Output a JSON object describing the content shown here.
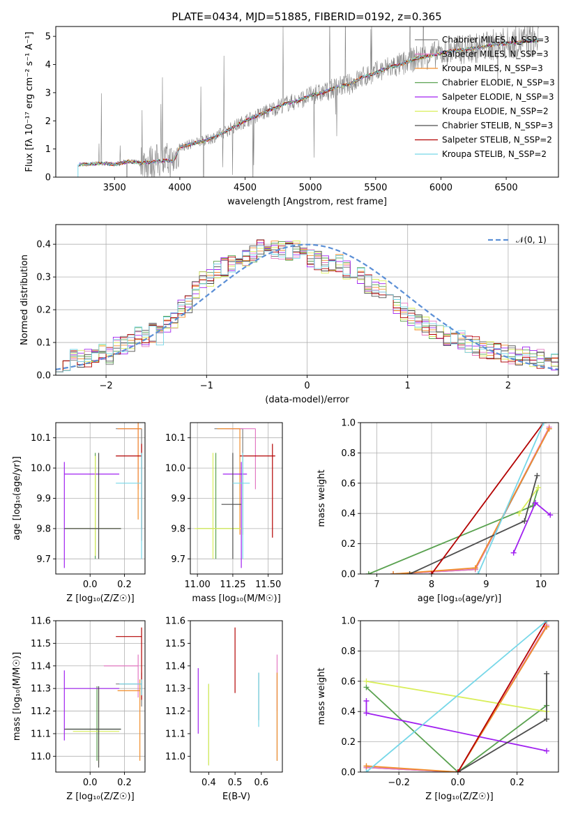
{
  "figure_title": "PLATE=0434, MJD=51885, FIBERID=0192, z=0.365",
  "model_colors": [
    "#7f7f7f",
    "#e377c2",
    "#f28e2b",
    "#59a14f",
    "#a020f0",
    "#d9ee5a",
    "#4d4d4d",
    "#b30000",
    "#76d7e8"
  ],
  "chart_data": [
    {
      "id": "spectrum",
      "type": "line",
      "xlabel": "wavelength [Angstrom, rest frame]",
      "ylabel": "Flux [fλ 10⁻¹⁷ erg cm⁻² s⁻¹ A⁻¹]",
      "xlim": [
        3050,
        6900
      ],
      "ylim": [
        0,
        5.35
      ],
      "xticks": [
        3500,
        4000,
        4500,
        5000,
        5500,
        6000,
        6500
      ],
      "yticks": [
        0,
        1,
        2,
        3,
        4,
        5
      ],
      "continuum": {
        "x": [
          3220,
          3300,
          3400,
          3500,
          3600,
          3700,
          3800,
          3900,
          3950,
          4000,
          4100,
          4200,
          4300,
          4400,
          4500,
          4600,
          4700,
          4800,
          4900,
          5000,
          5100,
          5200,
          5300,
          5400,
          5500,
          5600,
          5700,
          5800,
          5900,
          6000,
          6100,
          6200,
          6300,
          6400,
          6500,
          6600,
          6700,
          6750
        ],
        "y": [
          0.45,
          0.45,
          0.5,
          0.45,
          0.55,
          0.5,
          0.55,
          0.6,
          0.55,
          1.05,
          1.2,
          1.3,
          1.5,
          1.75,
          2.0,
          2.2,
          2.4,
          2.6,
          2.7,
          2.9,
          3.0,
          3.2,
          3.3,
          3.55,
          3.7,
          3.9,
          4.0,
          4.2,
          4.3,
          4.4,
          4.5,
          4.55,
          4.6,
          4.7,
          4.75,
          4.8,
          4.85,
          4.85
        ]
      },
      "legend": [
        "Chabrier MILES, N_SSP=3",
        "Salpeter MILES, N_SSP=3",
        "Kroupa MILES, N_SSP=3",
        "Chabrier ELODIE, N_SSP=3",
        "Salpeter ELODIE, N_SSP=3",
        "Kroupa ELODIE, N_SSP=2",
        "Chabrier STELIB, N_SSP=3",
        "Salpeter STELIB, N_SSP=2",
        "Kroupa STELIB, N_SSP=2"
      ],
      "legend_placement": "right"
    },
    {
      "id": "residuals",
      "type": "histogram",
      "xlabel": "(data-model)/error",
      "ylabel": "Normed distribution",
      "xlim": [
        -2.5,
        2.5
      ],
      "ylim": [
        0,
        0.46
      ],
      "xticks": [
        -2,
        -1,
        0,
        1,
        2
      ],
      "yticks": [
        0.0,
        0.1,
        0.2,
        0.3,
        0.4
      ],
      "bin_width": 0.1,
      "base_profile": [
        0.04,
        0.04,
        0.05,
        0.05,
        0.05,
        0.06,
        0.07,
        0.06,
        0.09,
        0.09,
        0.1,
        0.12,
        0.11,
        0.13,
        0.12,
        0.15,
        0.17,
        0.2,
        0.22,
        0.26,
        0.29,
        0.3,
        0.32,
        0.33,
        0.34,
        0.35,
        0.36,
        0.37,
        0.39,
        0.38,
        0.38,
        0.38,
        0.38,
        0.38,
        0.37,
        0.36,
        0.35,
        0.34,
        0.34,
        0.34,
        0.32,
        0.3,
        0.3,
        0.28,
        0.27,
        0.26,
        0.24,
        0.21,
        0.19,
        0.18,
        0.16,
        0.15,
        0.14,
        0.13,
        0.12,
        0.12,
        0.11,
        0.09,
        0.09,
        0.08,
        0.08,
        0.07,
        0.07,
        0.06,
        0.06,
        0.06,
        0.05,
        0.05,
        0.05,
        0.04
      ],
      "gaussian_label": "𝒩(0, 1)",
      "gaussian_color": "#5b8fd6",
      "grid": true
    },
    {
      "id": "age_vs_Z",
      "type": "errorbar",
      "xlabel": "Z [log₁₀(Z/Z☉)]",
      "ylabel": "age  [log₁₀(age/yr)]",
      "xlim": [
        -0.2,
        0.32
      ],
      "ylim": [
        9.65,
        10.15
      ],
      "xticks": [
        0.0,
        0.2
      ],
      "yticks": [
        9.7,
        9.8,
        9.9,
        10.0,
        10.1
      ],
      "points": [
        {
          "x": 0.3,
          "y": 10.13,
          "xerr": [
            0.15,
            0.0
          ],
          "yerr": [
            0.33,
            0.0
          ]
        },
        {
          "x": 0.28,
          "y": 10.13,
          "xerr": [
            0.12,
            0.02
          ],
          "yerr": [
            0.2,
            0.04
          ]
        },
        {
          "x": 0.28,
          "y": 10.13,
          "xerr": [
            0.12,
            0.02
          ],
          "yerr": [
            0.3,
            0.04
          ]
        },
        {
          "x": 0.03,
          "y": 9.8,
          "xerr": [
            0.18,
            0.15
          ],
          "yerr": [
            0.1,
            0.25
          ]
        },
        {
          "x": -0.15,
          "y": 9.98,
          "xerr": [
            0.0,
            0.32
          ],
          "yerr": [
            0.31,
            0.04
          ]
        },
        {
          "x": 0.03,
          "y": 9.8,
          "xerr": [
            0.15,
            0.15
          ],
          "yerr": [
            0.09,
            0.24
          ]
        },
        {
          "x": 0.05,
          "y": 9.8,
          "xerr": [
            0.2,
            0.13
          ],
          "yerr": [
            0.1,
            0.25
          ]
        },
        {
          "x": 0.3,
          "y": 10.04,
          "xerr": [
            0.15,
            0.0
          ],
          "yerr": [
            0.28,
            0.04
          ]
        },
        {
          "x": 0.3,
          "y": 9.95,
          "xerr": [
            0.15,
            0.0
          ],
          "yerr": [
            0.25,
            0.1
          ]
        }
      ],
      "grid": true
    },
    {
      "id": "age_vs_mass",
      "type": "errorbar",
      "xlabel": "mass [log₁₀(M/M☉)]",
      "ylabel": "",
      "xlim": [
        10.95,
        11.6
      ],
      "ylim": [
        9.65,
        10.15
      ],
      "xticks": [
        11.0,
        11.25,
        11.5
      ],
      "xticklabels": [
        "11.00",
        "11.25",
        "11.50"
      ],
      "yticks": [
        9.7,
        9.8,
        9.9,
        10.0,
        10.1
      ],
      "points": [
        {
          "x": 11.32,
          "y": 10.13,
          "xerr": [
            0.2,
            0.0
          ],
          "yerr": [
            0.35,
            0.0
          ]
        },
        {
          "x": 11.41,
          "y": 10.13,
          "xerr": [
            0.21,
            0.0
          ],
          "yerr": [
            0.2,
            0.0
          ]
        },
        {
          "x": 11.3,
          "y": 10.13,
          "xerr": [
            0.16,
            0.0
          ],
          "yerr": [
            0.35,
            0.0
          ]
        },
        {
          "x": 11.13,
          "y": 9.8,
          "xerr": [
            0.13,
            0.17
          ],
          "yerr": [
            0.1,
            0.25
          ]
        },
        {
          "x": 11.31,
          "y": 9.98,
          "xerr": [
            0.13,
            0.04
          ],
          "yerr": [
            0.31,
            0.04
          ]
        },
        {
          "x": 11.11,
          "y": 9.8,
          "xerr": [
            0.13,
            0.2
          ],
          "yerr": [
            0.1,
            0.25
          ]
        },
        {
          "x": 11.25,
          "y": 9.88,
          "xerr": [
            0.08,
            0.06
          ],
          "yerr": [
            0.18,
            0.17
          ]
        },
        {
          "x": 11.53,
          "y": 10.04,
          "xerr": [
            0.23,
            0.02
          ],
          "yerr": [
            0.27,
            0.04
          ]
        },
        {
          "x": 11.32,
          "y": 9.95,
          "xerr": [
            0.07,
            0.05
          ],
          "yerr": [
            0.25,
            0.1
          ]
        }
      ],
      "grid": true
    },
    {
      "id": "massweight_vs_age",
      "type": "line",
      "xlabel": "age  [log₁₀(age/yr)]",
      "ylabel": "mass weight",
      "xlim": [
        6.7,
        10.32
      ],
      "ylim": [
        0,
        1
      ],
      "xticks": [
        7,
        8,
        9,
        10
      ],
      "yticks": [
        0.0,
        0.2,
        0.4,
        0.6,
        0.8,
        1.0
      ],
      "series": [
        {
          "x": [
            7.3,
            8.8,
            10.15
          ],
          "y": [
            0.0,
            0.03,
            0.96
          ]
        },
        {
          "x": [
            7.3,
            8.8,
            10.15
          ],
          "y": [
            0.0,
            0.03,
            0.97
          ]
        },
        {
          "x": [
            7.3,
            8.8,
            10.15
          ],
          "y": [
            0.0,
            0.04,
            0.96
          ]
        },
        {
          "x": [
            6.85,
            9.85,
            9.95
          ],
          "y": [
            0.0,
            0.45,
            0.57
          ]
        },
        {
          "x": [
            9.5,
            9.9,
            10.17
          ],
          "y": [
            0.14,
            0.47,
            0.39
          ]
        },
        {
          "x": [
            9.6,
            9.95
          ],
          "y": [
            0.4,
            0.57
          ]
        },
        {
          "x": [
            7.6,
            9.7,
            9.93
          ],
          "y": [
            0.0,
            0.35,
            0.65
          ]
        },
        {
          "x": [
            8.0,
            10.05
          ],
          "y": [
            0.0,
            1.0
          ]
        },
        {
          "x": [
            8.85,
            10.05
          ],
          "y": [
            0.0,
            1.0
          ]
        }
      ],
      "grid": true
    },
    {
      "id": "mass_vs_Z",
      "type": "errorbar",
      "xlabel": "Z [log₁₀(Z/Z☉)]",
      "ylabel": "mass [log₁₀(M/M☉)]",
      "xlim": [
        -0.2,
        0.32
      ],
      "ylim": [
        10.93,
        11.6
      ],
      "xticks": [
        0.0,
        0.2
      ],
      "yticks": [
        11.0,
        11.1,
        11.2,
        11.3,
        11.4,
        11.5,
        11.6
      ],
      "points": [
        {
          "x": 0.3,
          "y": 11.32,
          "xerr": [
            0.15,
            0.0
          ],
          "yerr": [
            0.1,
            0.05
          ]
        },
        {
          "x": 0.28,
          "y": 11.4,
          "xerr": [
            0.2,
            0.0
          ],
          "yerr": [
            0.14,
            0.05
          ]
        },
        {
          "x": 0.29,
          "y": 11.29,
          "xerr": [
            0.13,
            0.0
          ],
          "yerr": [
            0.31,
            0.05
          ]
        },
        {
          "x": 0.04,
          "y": 11.12,
          "xerr": [
            0.18,
            0.14
          ],
          "yerr": [
            0.14,
            0.19
          ]
        },
        {
          "x": -0.15,
          "y": 11.3,
          "xerr": [
            0.0,
            0.32
          ],
          "yerr": [
            0.23,
            0.08
          ]
        },
        {
          "x": 0.05,
          "y": 11.11,
          "xerr": [
            0.15,
            0.12
          ],
          "yerr": [
            0.14,
            0.19
          ]
        },
        {
          "x": 0.05,
          "y": 11.12,
          "xerr": [
            0.2,
            0.13
          ],
          "yerr": [
            0.17,
            0.19
          ]
        },
        {
          "x": 0.3,
          "y": 11.53,
          "xerr": [
            0.15,
            0.0
          ],
          "yerr": [
            0.28,
            0.04
          ]
        },
        {
          "x": 0.3,
          "y": 11.32,
          "xerr": [
            0.13,
            0.0
          ],
          "yerr": [
            0.05,
            0.02
          ]
        }
      ],
      "grid": true
    },
    {
      "id": "mass_vs_ebv",
      "type": "errorbar",
      "xlabel": "E(B-V)",
      "ylabel": "",
      "xlim": [
        0.33,
        0.68
      ],
      "ylim": [
        10.93,
        11.6
      ],
      "xticks": [
        0.4,
        0.5,
        0.6
      ],
      "yticks": [
        11.0,
        11.1,
        11.2,
        11.3,
        11.4,
        11.5,
        11.6
      ],
      "points": [
        {
          "x": 0.66,
          "y": 11.32,
          "xerr": [
            0.0,
            0.0
          ],
          "yerr": [
            0.34,
            0.05
          ]
        },
        {
          "x": 0.66,
          "y": 11.32,
          "xerr": [
            0.0,
            0.0
          ],
          "yerr": [
            0.12,
            0.13
          ]
        },
        {
          "x": 0.66,
          "y": 11.3,
          "xerr": [
            0.0,
            0.0
          ],
          "yerr": [
            0.32,
            0.07
          ]
        },
        {
          "x": 0.4,
          "y": 11.15,
          "xerr": [
            0.0,
            0.0
          ],
          "yerr": [
            0.19,
            0.17
          ]
        },
        {
          "x": 0.36,
          "y": 11.25,
          "xerr": [
            0.0,
            0.0
          ],
          "yerr": [
            0.15,
            0.14
          ]
        },
        {
          "x": 0.4,
          "y": 11.15,
          "xerr": [
            0.0,
            0.0
          ],
          "yerr": [
            0.19,
            0.17
          ]
        },
        {
          "x": 0.59,
          "y": 11.28,
          "xerr": [
            0.0,
            0.0
          ],
          "yerr": [
            0.12,
            0.09
          ]
        },
        {
          "x": 0.5,
          "y": 11.42,
          "xerr": [
            0.0,
            0.0
          ],
          "yerr": [
            0.14,
            0.15
          ]
        },
        {
          "x": 0.59,
          "y": 11.25,
          "xerr": [
            0.0,
            0.0
          ],
          "yerr": [
            0.12,
            0.12
          ]
        }
      ],
      "grid": false
    },
    {
      "id": "massweight_vs_Z",
      "type": "line",
      "xlabel": "Z [log₁₀(Z/Z☉)]",
      "ylabel": "mass weight",
      "xlim": [
        -0.33,
        0.34
      ],
      "ylim": [
        0,
        1
      ],
      "xticks": [
        -0.2,
        0.0,
        0.2
      ],
      "yticks": [
        0.0,
        0.2,
        0.4,
        0.6,
        0.8,
        1.0
      ],
      "series": [
        {
          "x": [
            -0.31,
            0.0,
            0.3
          ],
          "y": [
            0.03,
            0.0,
            0.96
          ]
        },
        {
          "x": [
            -0.31,
            0.0,
            0.3
          ],
          "y": [
            0.03,
            0.0,
            0.97
          ]
        },
        {
          "x": [
            -0.31,
            0.0,
            0.3
          ],
          "y": [
            0.04,
            0.0,
            0.96
          ]
        },
        {
          "x": [
            -0.31,
            0.0,
            0.3
          ],
          "y": [
            0.56,
            0.0,
            0.44
          ]
        },
        {
          "x": [
            -0.31,
            -0.31,
            0.3
          ],
          "y": [
            0.47,
            0.39,
            0.14
          ]
        },
        {
          "x": [
            -0.31,
            0.3
          ],
          "y": [
            0.6,
            0.4
          ]
        },
        {
          "x": [
            0.0,
            0.3,
            0.3
          ],
          "y": [
            0.0,
            0.35,
            0.65
          ]
        },
        {
          "x": [
            0.0,
            0.3
          ],
          "y": [
            0.0,
            1.0
          ]
        },
        {
          "x": [
            -0.31,
            0.3
          ],
          "y": [
            0.0,
            1.0
          ]
        }
      ],
      "grid": true
    }
  ]
}
